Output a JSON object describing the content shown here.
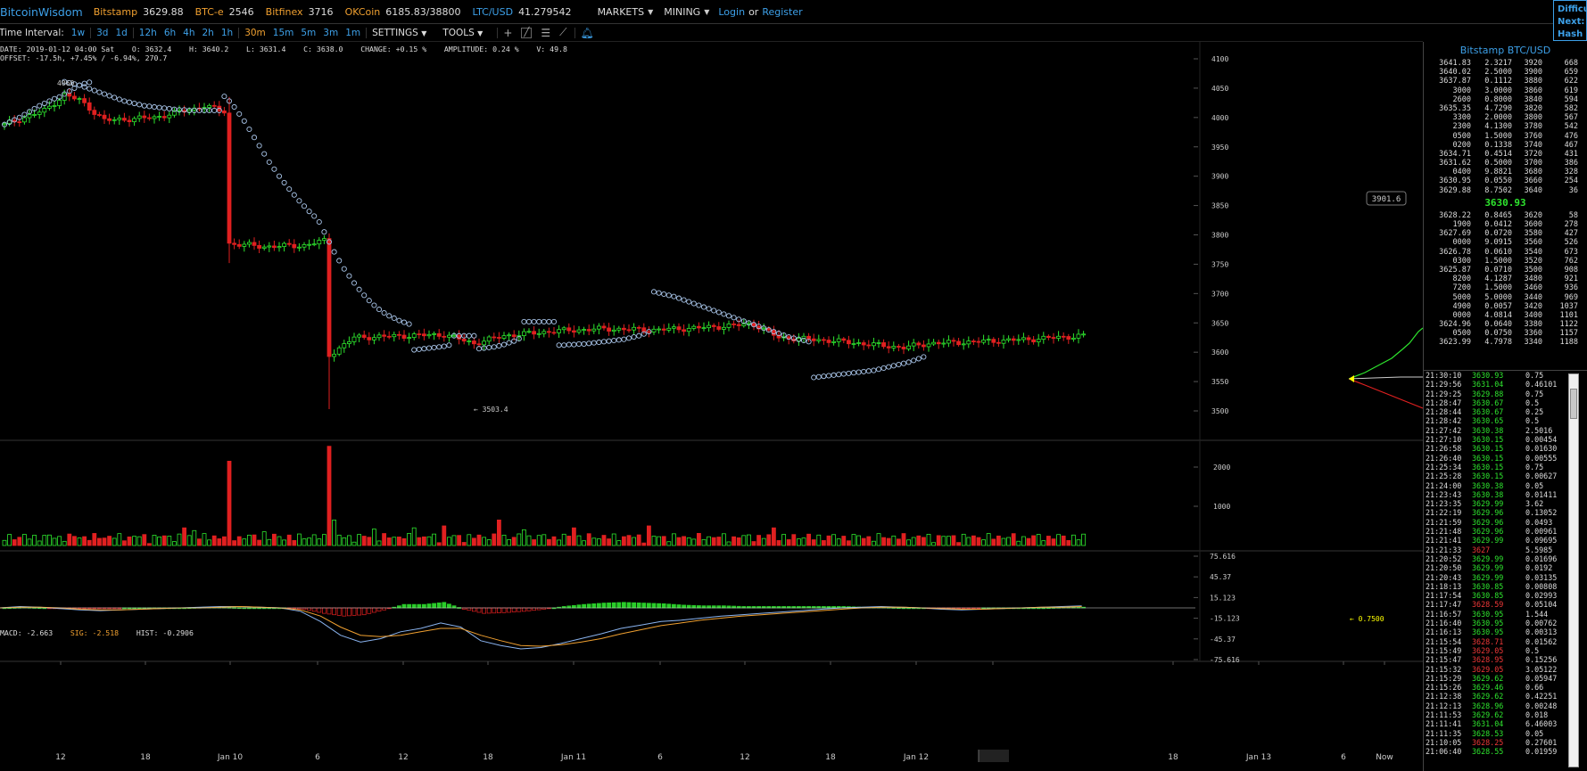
{
  "topbar": {
    "brand": "BitcoinWisdom",
    "exchanges": [
      {
        "name": "Bitstamp",
        "price": "3629.88"
      },
      {
        "name": "BTC-e",
        "price": "2546"
      },
      {
        "name": "Bitfinex",
        "price": "3716"
      },
      {
        "name": "OKCoin",
        "price": "6185.83/38800"
      }
    ],
    "ltc_label": "LTC/USD",
    "ltc_price": "41.279542",
    "markets": "MARKETS",
    "mining": "MINING",
    "login": "Login",
    "or": "or",
    "register": "Register"
  },
  "difficulty_box": {
    "line1": "Difficu",
    "line2": "Next:",
    "line3": "Hash R"
  },
  "toolbar": {
    "time_interval_label": "Time Interval:",
    "groups": [
      [
        "1w"
      ],
      [
        "3d",
        "1d"
      ],
      [
        "12h",
        "6h",
        "4h",
        "2h",
        "1h"
      ],
      [
        "30m",
        "15m",
        "5m",
        "3m",
        "1m"
      ]
    ],
    "active": "30m",
    "settings": "SETTINGS",
    "tools": "TOOLS"
  },
  "info": {
    "line1": "DATE: 2019-01-12 04:00 Sat    O: 3632.4    H: 3640.2    L: 3631.4    C: 3638.0    CHANGE: +0.15 %    AMPLITUDE: 0.24 %    V: 49.8",
    "line2": "OFFSET: -17.5h, +7.45% / -6.94%, 270.7",
    "macd": "MACD: -2.663",
    "sig": "SIG: -2.518",
    "hist": "HIST: -0.2906"
  },
  "chart_data": [
    {
      "type": "candlestick",
      "title": "",
      "ylim": [
        3450,
        4120
      ],
      "y_ticks": [
        "4100",
        "4050",
        "4000",
        "3950",
        "3900",
        "3850",
        "3800",
        "3750",
        "3700",
        "3650",
        "3600",
        "3550",
        "3500"
      ],
      "annotations": {
        "high_label": "4060",
        "low_label": "← 3503.4",
        "crosshair_price": "3901.6"
      },
      "x_ticks": [
        "12",
        "18",
        "Jan 10",
        "6",
        "12",
        "18",
        "Jan 11",
        "6",
        "12",
        "18",
        "Jan 12",
        "4:00",
        "18",
        "Jan 13",
        "6",
        "Now"
      ],
      "anchors": [
        [
          0,
          3988
        ],
        [
          8,
          4012
        ],
        [
          12,
          4038
        ],
        [
          15,
          4030
        ],
        [
          20,
          3995
        ],
        [
          30,
          4000
        ],
        [
          38,
          4015
        ],
        [
          40,
          4020
        ],
        [
          44,
          4010
        ],
        [
          45,
          3785
        ],
        [
          52,
          3780
        ],
        [
          60,
          3782
        ],
        [
          64,
          3790
        ],
        [
          65,
          3595
        ],
        [
          70,
          3625
        ],
        [
          80,
          3628
        ],
        [
          88,
          3630
        ],
        [
          94,
          3615
        ],
        [
          100,
          3628
        ],
        [
          110,
          3636
        ],
        [
          120,
          3640
        ],
        [
          130,
          3638
        ],
        [
          140,
          3642
        ],
        [
          150,
          3648
        ],
        [
          155,
          3625
        ],
        [
          165,
          3620
        ],
        [
          175,
          3612
        ],
        [
          180,
          3608
        ],
        [
          185,
          3615
        ],
        [
          195,
          3618
        ],
        [
          205,
          3622
        ],
        [
          216,
          3628
        ]
      ],
      "sar_segments": [
        {
          "start": 0,
          "values": [
            3988,
            3992,
            3996,
            4000,
            4005,
            4010,
            4015,
            4020,
            4024,
            4028,
            4032,
            4035,
            4040,
            4045,
            4050,
            4055,
            4058,
            4060
          ]
        },
        {
          "start": 12,
          "values": [
            4061,
            4059,
            4057,
            4055,
            4052,
            4049,
            4046,
            4043,
            4040,
            4037,
            4034,
            4031,
            4028,
            4026,
            4024,
            4022,
            4020,
            4019,
            4018,
            4017,
            4016,
            4015,
            4014,
            4013,
            4013,
            4012,
            4012,
            4012,
            4012,
            4012,
            4012,
            4012
          ]
        },
        {
          "start": 44,
          "values": [
            4036,
            4028,
            4018,
            4006,
            3994,
            3980,
            3966,
            3952,
            3938,
            3924,
            3912,
            3900,
            3889,
            3878,
            3868,
            3858,
            3849,
            3840,
            3832,
            3822,
            3805,
            3788,
            3771,
            3756,
            3742,
            3730,
            3718,
            3707,
            3697,
            3688,
            3680,
            3673,
            3667,
            3662,
            3658,
            3654,
            3651,
            3648
          ]
        },
        {
          "start": 82,
          "values": [
            3604,
            3605,
            3606,
            3607,
            3608,
            3609,
            3610,
            3612
          ]
        },
        {
          "start": 90,
          "values": [
            3628,
            3628,
            3628,
            3628,
            3628
          ]
        },
        {
          "start": 95,
          "values": [
            3606,
            3607,
            3608,
            3609,
            3611,
            3613,
            3616,
            3619,
            3623
          ]
        },
        {
          "start": 104,
          "values": [
            3652,
            3652,
            3652,
            3652,
            3652,
            3652,
            3652
          ]
        },
        {
          "start": 111,
          "values": [
            3612,
            3612,
            3613,
            3613,
            3614,
            3614,
            3615,
            3616,
            3617,
            3618,
            3619,
            3620,
            3621,
            3622,
            3624,
            3626,
            3628,
            3631,
            3635
          ]
        },
        {
          "start": 130,
          "values": [
            3703,
            3701,
            3699,
            3697,
            3695,
            3692,
            3689,
            3686,
            3683,
            3680,
            3677,
            3674,
            3671,
            3668,
            3665,
            3662,
            3659,
            3656,
            3653,
            3650,
            3647,
            3644,
            3641,
            3638,
            3635,
            3632,
            3629,
            3626,
            3624,
            3622,
            3620,
            3618
          ]
        },
        {
          "start": 162,
          "values": [
            3557,
            3558,
            3559,
            3560,
            3561,
            3562,
            3563,
            3564,
            3565,
            3566,
            3567,
            3568,
            3569,
            3571,
            3573,
            3575,
            3577,
            3579,
            3581,
            3583,
            3586,
            3589,
            3592
          ]
        }
      ]
    },
    {
      "type": "bar",
      "title": "",
      "ylim": [
        0,
        2700
      ],
      "y_ticks": [
        "2000",
        "1000"
      ],
      "last_label": "← 0.7500",
      "spikes": [
        [
          36,
          450
        ],
        [
          38,
          380
        ],
        [
          45,
          2150
        ],
        [
          52,
          350
        ],
        [
          65,
          2530
        ],
        [
          66,
          650
        ],
        [
          74,
          420
        ],
        [
          82,
          450
        ],
        [
          88,
          500
        ],
        [
          99,
          650
        ],
        [
          104,
          400
        ],
        [
          114,
          450
        ],
        [
          129,
          500
        ],
        [
          144,
          300
        ],
        [
          154,
          450
        ]
      ]
    },
    {
      "type": "line",
      "title": "",
      "ylim": [
        -80,
        80
      ],
      "y_ticks": [
        "75.616",
        "45.37",
        "15.123",
        "-15.123",
        "-45.37",
        "-75.616"
      ],
      "series": [
        {
          "values": [
            0,
            2,
            1,
            -1,
            -3,
            -4,
            -3,
            -2,
            -1,
            0,
            1,
            2,
            2,
            1,
            0,
            -5,
            -20,
            -40,
            -50,
            -45,
            -35,
            -30,
            -22,
            -28,
            -48,
            -55,
            -60,
            -58,
            -52,
            -45,
            -38,
            -30,
            -25,
            -20,
            -18,
            -15,
            -12,
            -10,
            -8,
            -6,
            -4,
            -2,
            0,
            1,
            2,
            1,
            0,
            -2,
            -3,
            -2,
            -1,
            0,
            1,
            2,
            3
          ]
        },
        {
          "values": [
            0,
            1,
            1,
            0,
            -2,
            -3,
            -3,
            -2,
            -1,
            0,
            0,
            1,
            2,
            1,
            0,
            -3,
            -12,
            -28,
            -40,
            -42,
            -40,
            -35,
            -30,
            -30,
            -40,
            -48,
            -55,
            -56,
            -54,
            -50,
            -45,
            -38,
            -32,
            -26,
            -22,
            -18,
            -15,
            -12,
            -10,
            -8,
            -6,
            -4,
            -2,
            0,
            1,
            1,
            0,
            -1,
            -2,
            -2,
            -1,
            0,
            1,
            1,
            2
          ]
        }
      ],
      "histogram": [
        0,
        1,
        0,
        -1,
        -1,
        -1,
        0,
        0,
        0,
        0,
        1,
        1,
        0,
        0,
        0,
        -2,
        -8,
        -12,
        -10,
        -3,
        5,
        5,
        8,
        -2,
        -8,
        -7,
        -5,
        -2,
        2,
        5,
        7,
        8,
        7,
        6,
        4,
        3,
        3,
        2,
        2,
        2,
        2,
        2,
        2,
        1,
        1,
        0,
        0,
        -1,
        -1,
        0,
        0,
        0,
        0,
        1,
        1
      ]
    }
  ],
  "orderbook": {
    "title": "Bitstamp BTC/USD",
    "asks": [
      [
        "3641.83",
        "2.3217",
        "3920",
        "668"
      ],
      [
        "3640.02",
        "2.5000",
        "3900",
        "659"
      ],
      [
        "3637.87",
        "0.1112",
        "3880",
        "622"
      ],
      [
        "3000",
        "3.0000",
        "3860",
        "619"
      ],
      [
        "2600",
        "0.8000",
        "3840",
        "594"
      ],
      [
        "3635.35",
        "4.7290",
        "3820",
        "582"
      ],
      [
        "3300",
        "2.0000",
        "3800",
        "567"
      ],
      [
        "2300",
        "4.1300",
        "3780",
        "542"
      ],
      [
        "0500",
        "1.5000",
        "3760",
        "476"
      ],
      [
        "0200",
        "0.1338",
        "3740",
        "467"
      ],
      [
        "3634.71",
        "0.4514",
        "3720",
        "431"
      ],
      [
        "3631.62",
        "0.5000",
        "3700",
        "386"
      ],
      [
        "0400",
        "9.8821",
        "3680",
        "328"
      ],
      [
        "3630.95",
        "0.0550",
        "3660",
        "254"
      ],
      [
        "3629.88",
        "8.7502",
        "3640",
        "36"
      ]
    ],
    "mid": "3630.93",
    "bids": [
      [
        "3628.22",
        "0.8465",
        "3620",
        "58"
      ],
      [
        "1900",
        "0.0412",
        "3600",
        "278"
      ],
      [
        "3627.69",
        "0.0720",
        "3580",
        "427"
      ],
      [
        "0000",
        "9.0915",
        "3560",
        "526"
      ],
      [
        "3626.78",
        "0.0610",
        "3540",
        "673"
      ],
      [
        "0300",
        "1.5000",
        "3520",
        "762"
      ],
      [
        "3625.87",
        "0.0710",
        "3500",
        "908"
      ],
      [
        "8200",
        "4.1287",
        "3480",
        "921"
      ],
      [
        "7200",
        "1.5000",
        "3460",
        "936"
      ],
      [
        "5000",
        "5.0000",
        "3440",
        "969"
      ],
      [
        "4900",
        "0.0057",
        "3420",
        "1037"
      ],
      [
        "0000",
        "4.0814",
        "3400",
        "1101"
      ],
      [
        "3624.96",
        "0.0640",
        "3380",
        "1122"
      ],
      [
        "0500",
        "0.0750",
        "3360",
        "1157"
      ],
      [
        "3623.99",
        "4.7978",
        "3340",
        "1188"
      ]
    ]
  },
  "trades": [
    [
      "21:30:10",
      "3630.93",
      "0.75",
      "up"
    ],
    [
      "21:29:56",
      "3631.04",
      "0.46101",
      "up"
    ],
    [
      "21:29:25",
      "3629.88",
      "0.75",
      "up"
    ],
    [
      "21:28:47",
      "3630.67",
      "0.5",
      "up"
    ],
    [
      "21:28:44",
      "3630.67",
      "0.25",
      "up"
    ],
    [
      "21:28:42",
      "3630.65",
      "0.5",
      "up"
    ],
    [
      "21:27:42",
      "3630.38",
      "2.5016",
      "up"
    ],
    [
      "21:27:10",
      "3630.15",
      "0.00454",
      "up"
    ],
    [
      "21:26:58",
      "3630.15",
      "0.01630",
      "up"
    ],
    [
      "21:26:40",
      "3630.15",
      "0.00555",
      "up"
    ],
    [
      "21:25:34",
      "3630.15",
      "0.75",
      "up"
    ],
    [
      "21:25:28",
      "3630.15",
      "0.00627",
      "up"
    ],
    [
      "21:24:00",
      "3630.38",
      "0.05",
      "up"
    ],
    [
      "21:23:43",
      "3630.38",
      "0.01411",
      "up"
    ],
    [
      "21:23:35",
      "3629.99",
      "3.62",
      "up"
    ],
    [
      "21:22:19",
      "3629.96",
      "0.13052",
      "up"
    ],
    [
      "21:21:59",
      "3629.96",
      "0.0493",
      "up"
    ],
    [
      "21:21:48",
      "3629.96",
      "0.00961",
      "up"
    ],
    [
      "21:21:41",
      "3629.99",
      "0.09695",
      "up"
    ],
    [
      "21:21:33",
      "3627",
      "5.5985",
      "dn"
    ],
    [
      "21:20:52",
      "3629.99",
      "0.01696",
      "up"
    ],
    [
      "21:20:50",
      "3629.99",
      "0.0192",
      "up"
    ],
    [
      "21:20:43",
      "3629.99",
      "0.03135",
      "up"
    ],
    [
      "21:18:13",
      "3630.85",
      "0.00808",
      "up"
    ],
    [
      "21:17:54",
      "3630.85",
      "0.02993",
      "up"
    ],
    [
      "21:17:47",
      "3628.59",
      "0.05104",
      "dn"
    ],
    [
      "21:16:57",
      "3630.95",
      "1.544",
      "up"
    ],
    [
      "21:16:40",
      "3630.95",
      "0.00762",
      "up"
    ],
    [
      "21:16:13",
      "3630.95",
      "0.00313",
      "up"
    ],
    [
      "21:15:54",
      "3628.71",
      "0.01562",
      "dn"
    ],
    [
      "21:15:49",
      "3629.05",
      "0.5",
      "dn"
    ],
    [
      "21:15:47",
      "3628.95",
      "0.15256",
      "dn"
    ],
    [
      "21:15:32",
      "3629.05",
      "3.05122",
      "dn"
    ],
    [
      "21:15:29",
      "3629.62",
      "0.05947",
      "up"
    ],
    [
      "21:15:26",
      "3629.46",
      "0.66",
      "up"
    ],
    [
      "21:12:38",
      "3629.62",
      "0.42251",
      "up"
    ],
    [
      "21:12:13",
      "3628.96",
      "0.00248",
      "up"
    ],
    [
      "21:11:53",
      "3629.62",
      "0.018",
      "up"
    ],
    [
      "21:11:41",
      "3631.04",
      "6.46003",
      "up"
    ],
    [
      "21:11:35",
      "3628.53",
      "0.05",
      "up"
    ],
    [
      "21:10:05",
      "3628.25",
      "0.27601",
      "dn"
    ],
    [
      "21:06:40",
      "3628.55",
      "0.01959",
      "up"
    ]
  ],
  "colors": {
    "up": "#2ee52e",
    "down": "#e02020",
    "accent": "#3da0e8",
    "exchange": "#f0a030",
    "sar": "#a8c4e8"
  }
}
